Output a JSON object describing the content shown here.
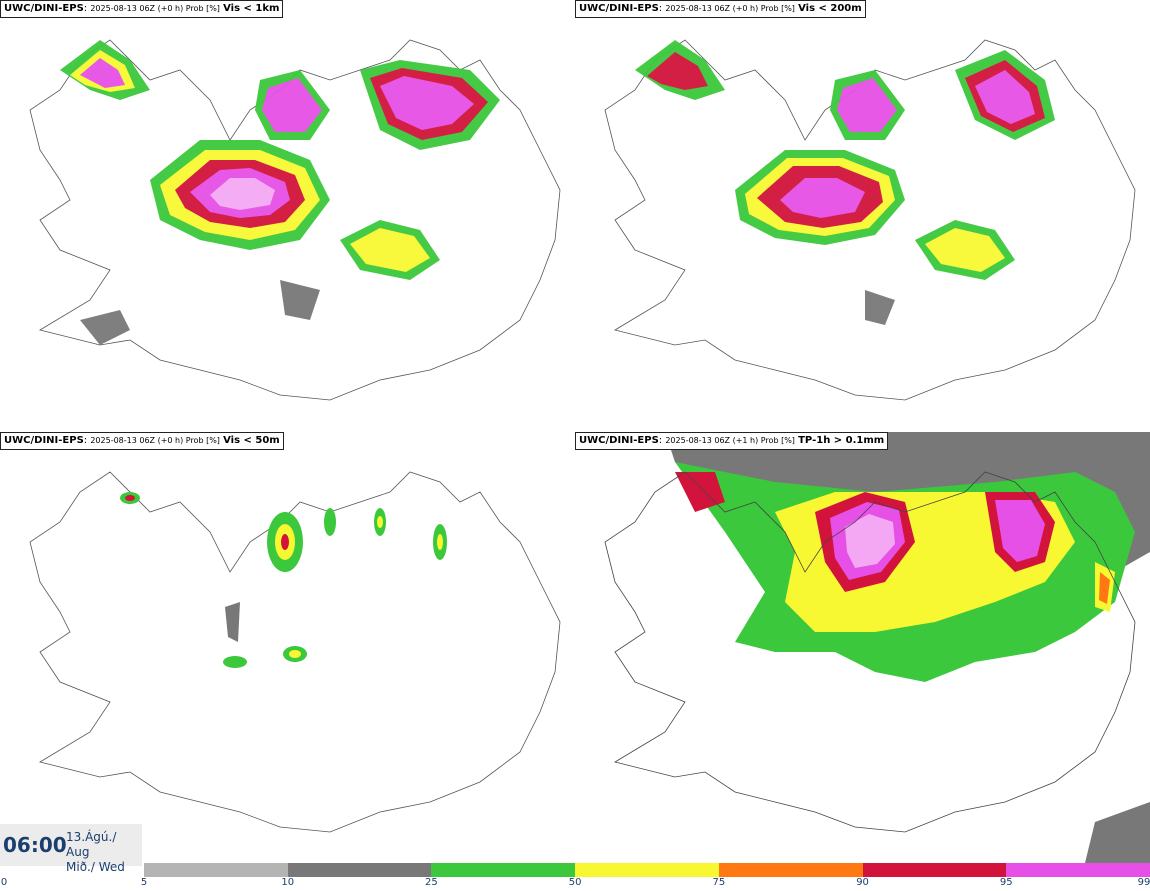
{
  "panels": [
    {
      "model": "UWC/DINI-EPS",
      "meta": "2025-08-13 06Z (+0 h) Prob [%]",
      "variable": "Vis < 1km"
    },
    {
      "model": "UWC/DINI-EPS",
      "meta": "2025-08-13 06Z (+0 h) Prob [%]",
      "variable": "Vis < 200m"
    },
    {
      "model": "UWC/DINI-EPS",
      "meta": "2025-08-13 06Z (+0 h) Prob [%]",
      "variable": "Vis < 50m"
    },
    {
      "model": "UWC/DINI-EPS",
      "meta": "2025-08-13 06Z (+1 h) Prob [%]",
      "variable": "TP-1h > 0.1mm"
    }
  ],
  "time": {
    "clock": "06:00",
    "date_line1": "13.Ágú./ Aug",
    "date_line2": "Mið./ Wed"
  },
  "legend": {
    "ticks": [
      "0",
      "5",
      "10",
      "25",
      "50",
      "75",
      "90",
      "95",
      "99"
    ],
    "colors": [
      "#b4b4b4",
      "#787878",
      "#3cc83c",
      "#f8f832",
      "#ff7814",
      "#d2143c",
      "#e650e6"
    ]
  }
}
